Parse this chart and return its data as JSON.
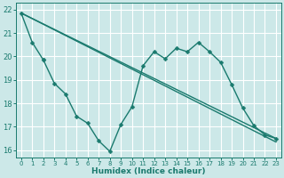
{
  "xlabel": "Humidex (Indice chaleur)",
  "bg_color": "#cce8e8",
  "grid_color": "#ffffff",
  "line_color": "#1a7a6e",
  "xlim": [
    -0.5,
    23.5
  ],
  "ylim": [
    15.7,
    22.3
  ],
  "yticks": [
    16,
    17,
    18,
    19,
    20,
    21,
    22
  ],
  "xticks": [
    0,
    1,
    2,
    3,
    4,
    5,
    6,
    7,
    8,
    9,
    10,
    11,
    12,
    13,
    14,
    15,
    16,
    17,
    18,
    19,
    20,
    21,
    22,
    23
  ],
  "series": [
    {
      "x": [
        0,
        1,
        2
      ],
      "y": [
        21.85,
        20.6,
        19.85
      ],
      "marker": "D",
      "markersize": 2.5,
      "lw": 1.0
    },
    {
      "x": [
        2,
        3,
        4,
        5,
        6,
        7,
        8,
        9,
        10,
        11,
        12,
        13,
        14,
        15,
        16,
        17,
        18,
        19,
        20,
        21,
        22,
        23
      ],
      "y": [
        19.85,
        18.85,
        18.4,
        17.45,
        17.15,
        16.4,
        15.95,
        17.1,
        17.85,
        19.6,
        20.2,
        19.9,
        20.35,
        20.2,
        20.6,
        20.2,
        19.75,
        18.8,
        17.8,
        17.05,
        16.65,
        16.5
      ],
      "marker": "D",
      "markersize": 2.5,
      "lw": 1.0
    },
    {
      "x": [
        0,
        23
      ],
      "y": [
        21.85,
        16.5
      ],
      "marker": null,
      "markersize": 0,
      "lw": 1.0
    },
    {
      "x": [
        0,
        23
      ],
      "y": [
        21.85,
        16.35
      ],
      "marker": null,
      "markersize": 0,
      "lw": 1.0
    }
  ]
}
